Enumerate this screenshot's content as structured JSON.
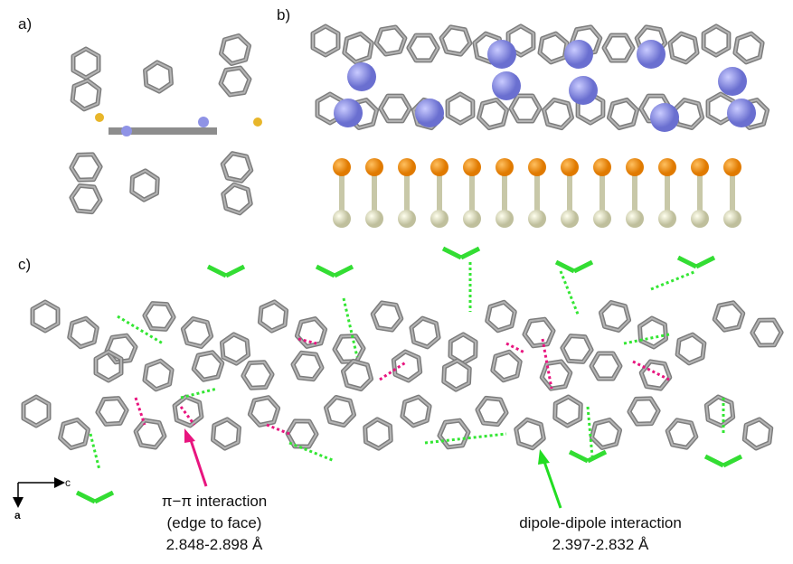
{
  "panels": {
    "a": {
      "label": "a)"
    },
    "b": {
      "label": "b)"
    },
    "c": {
      "label": "c)",
      "axes": {
        "horizontal": "c",
        "vertical": "a"
      },
      "annotations": [
        {
          "lines": [
            "π−π interaction",
            "(edge to face)",
            "2.848-2.898 Å"
          ]
        },
        {
          "lines": [
            "dipole-dipole interaction",
            "2.397-2.832 Å"
          ]
        }
      ]
    }
  }
}
